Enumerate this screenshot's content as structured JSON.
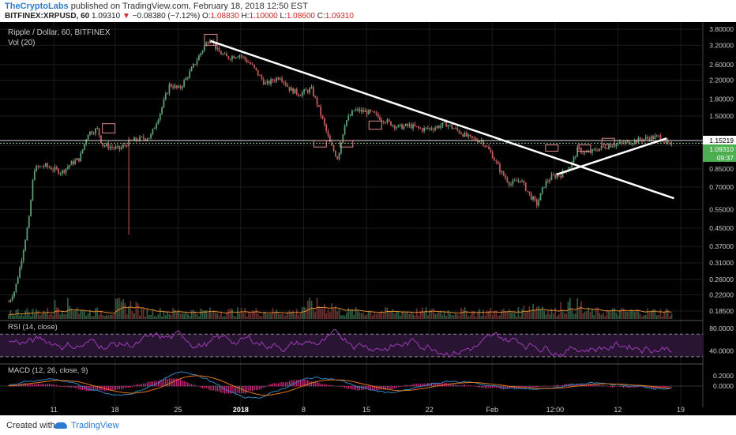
{
  "header": {
    "publisher": "TheCryptoLabs",
    "published_text": "published on TradingView.com, February 18, 2018 12:50 EST",
    "symbol": "BITFINEX:XRPUSD, 60",
    "last": "1.09310",
    "change": "−0.08380 (−7.12%)",
    "o": "1.08830",
    "h": "1.10000",
    "l": "1.08600",
    "c": "1.09310"
  },
  "legend": {
    "title": "Ripple / Dollar, 60, BITFINEX",
    "vol": "Vol (20)",
    "rsi": "RSI (14, close)",
    "macd": "MACD (12, 26, close, 9)"
  },
  "footer": {
    "created": "Created with",
    "brand": "TradingView"
  },
  "colors": {
    "background": "#000000",
    "up": "#5e9c76",
    "down": "#c05a5a",
    "rsi": "#9b3db5",
    "macd": "#2e86c1",
    "signal": "#e0761b",
    "trendline": "#ffffff"
  },
  "chart_data": {
    "type": "candlestick",
    "title": "Ripple / Dollar, 60, BITFINEX",
    "log_scale": true,
    "ylim": [
      0.17,
      3.9
    ],
    "x_labels": [
      "11",
      "18",
      "25",
      "2018",
      "8",
      "15",
      "22",
      "Feb",
      "12:00",
      "12",
      "19"
    ],
    "y_ticks": [
      "3.80000",
      "3.20000",
      "2.60000",
      "2.20000",
      "1.80000",
      "1.50000",
      "1.09310",
      "0.85000",
      "0.70000",
      "0.55000",
      "0.45000",
      "0.37000",
      "0.31000",
      "0.26000",
      "0.22000",
      "0.18500"
    ],
    "price_path": [
      [
        0.2,
        0.205
      ],
      [
        0.22,
        0.2
      ],
      [
        0.45,
        0.22
      ],
      [
        0.7,
        0.23
      ],
      [
        1.1,
        0.29
      ],
      [
        1.9,
        0.5
      ],
      [
        2.3,
        0.85
      ],
      [
        3.2,
        0.88
      ],
      [
        4.6,
        0.82
      ],
      [
        5.4,
        0.9
      ],
      [
        6.1,
        0.95
      ],
      [
        6.8,
        1.25
      ],
      [
        7.6,
        1.3
      ],
      [
        8.0,
        1.1
      ],
      [
        9.4,
        1.05
      ],
      [
        10.4,
        1.15
      ],
      [
        12.0,
        1.2
      ],
      [
        12.8,
        1.55
      ],
      [
        13.6,
        2.1
      ],
      [
        14.4,
        2.0
      ],
      [
        15.3,
        2.4
      ],
      [
        16.4,
        3.1
      ],
      [
        17.0,
        3.5
      ],
      [
        17.6,
        3.0
      ],
      [
        18.4,
        2.8
      ],
      [
        19.4,
        2.9
      ],
      [
        20.4,
        2.6
      ],
      [
        21.6,
        2.1
      ],
      [
        22.8,
        2.3
      ],
      [
        23.6,
        2.0
      ],
      [
        24.4,
        1.9
      ],
      [
        25.4,
        2.0
      ],
      [
        25.9,
        1.7
      ],
      [
        26.5,
        1.35
      ],
      [
        27.0,
        1.1
      ],
      [
        27.6,
        0.95
      ],
      [
        28.2,
        1.4
      ],
      [
        29.0,
        1.6
      ],
      [
        30.4,
        1.55
      ],
      [
        31.6,
        1.42
      ],
      [
        32.6,
        1.33
      ],
      [
        33.6,
        1.35
      ],
      [
        34.6,
        1.3
      ],
      [
        35.6,
        1.32
      ],
      [
        36.6,
        1.38
      ],
      [
        37.6,
        1.28
      ],
      [
        38.6,
        1.18
      ],
      [
        39.6,
        1.15
      ],
      [
        40.4,
        1.0
      ],
      [
        41.2,
        0.82
      ],
      [
        42.0,
        0.72
      ],
      [
        42.8,
        0.76
      ],
      [
        43.6,
        0.64
      ],
      [
        44.2,
        0.58
      ],
      [
        44.8,
        0.72
      ],
      [
        45.4,
        0.78
      ],
      [
        46.2,
        0.8
      ],
      [
        47.0,
        0.88
      ],
      [
        47.6,
        1.05
      ],
      [
        48.4,
        1.0
      ],
      [
        49.2,
        1.05
      ],
      [
        50.4,
        1.1
      ],
      [
        51.4,
        1.12
      ],
      [
        52.4,
        1.15
      ],
      [
        53.4,
        1.18
      ],
      [
        54.4,
        1.2
      ],
      [
        55.2,
        1.09
      ]
    ],
    "trendlines": [
      {
        "from": [
          17.0,
          3.35
        ],
        "to": [
          55.6,
          0.62
        ]
      },
      {
        "from": [
          45.8,
          0.8
        ],
        "to": [
          55.0,
          1.18
        ]
      }
    ],
    "horizontal_levels": [
      1.15219,
      1.12
    ],
    "value_labels": [
      "1.15219",
      "1.09310",
      "09:37"
    ],
    "rsi": {
      "label": "RSI (14, close)",
      "ylim": [
        20,
        90
      ],
      "ticks": [
        "80.0000",
        "40.0000"
      ],
      "bands": [
        70,
        30
      ]
    },
    "macd": {
      "label": "MACD (12, 26, close, 9)",
      "ticks": [
        "0.2000",
        "0.0000"
      ]
    }
  }
}
